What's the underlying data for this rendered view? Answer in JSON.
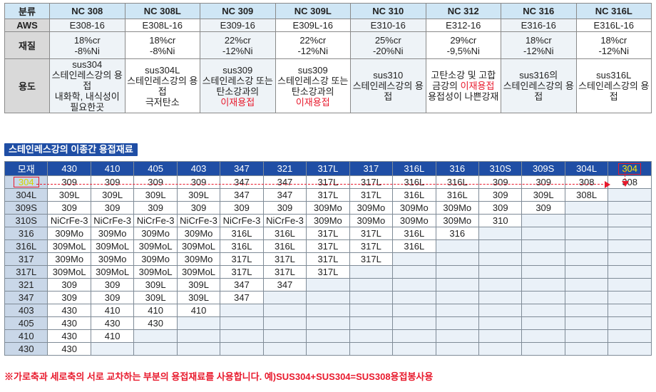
{
  "spec": {
    "row_labels": {
      "name": "분류",
      "aws": "AWS",
      "comp": "재질",
      "use": "용도"
    },
    "columns": [
      {
        "name": "NC 308",
        "aws": "E308-16",
        "comp1": "18%cr",
        "comp2": "-8%Ni",
        "use": [
          {
            "t": "sus304"
          },
          {
            "t": "스테인레스강의 용접"
          },
          {
            "t": "내화학, 내식성이"
          },
          {
            "t": "필요한곳"
          }
        ]
      },
      {
        "name": "NC 308L",
        "aws": "E308L-16",
        "comp1": "18%cr",
        "comp2": "-8%Ni",
        "use": [
          {
            "t": "sus304L"
          },
          {
            "t": "스테인레스강의 용접"
          },
          {
            "t": "극저탄소"
          }
        ]
      },
      {
        "name": "NC 309",
        "aws": "E309-16",
        "comp1": "22%cr",
        "comp2": "-12%Ni",
        "use": [
          {
            "t": "sus309"
          },
          {
            "t": "스테인레스강 또는"
          },
          {
            "t": "탄소강과의"
          },
          {
            "t": "이재용접",
            "red": true
          }
        ]
      },
      {
        "name": "NC 309L",
        "aws": "E309L-16",
        "comp1": "22%cr",
        "comp2": "-12%Ni",
        "use": [
          {
            "t": "sus309"
          },
          {
            "t": "스테인레스강 또는"
          },
          {
            "t": "탄소강과의"
          },
          {
            "t": "이재용접",
            "red": true
          }
        ]
      },
      {
        "name": "NC 310",
        "aws": "E310-16",
        "comp1": "25%cr",
        "comp2": "-20%Ni",
        "use": [
          {
            "t": "sus310"
          },
          {
            "t": "스테인레스강의 용접"
          }
        ]
      },
      {
        "name": "NC 312",
        "aws": "E312-16",
        "comp1": "29%cr",
        "comp2": "-9,5%Ni",
        "use": [
          {
            "t": "고탄소강 및 고합"
          },
          {
            "t": "금강의 ",
            "red_tail": "이재용접"
          },
          {
            "t": "용접성이 나쁜강재"
          }
        ]
      },
      {
        "name": "NC 316",
        "aws": "E316-16",
        "comp1": "18%cr",
        "comp2": "-12%Ni",
        "use": [
          {
            "t": "sus316의"
          },
          {
            "t": "스테인레스강의 용접"
          }
        ]
      },
      {
        "name": "NC 316L",
        "aws": "E316L-16",
        "comp1": "18%cr",
        "comp2": "-12%Ni",
        "use": [
          {
            "t": "sus316L"
          },
          {
            "t": "스테인레스강의 용접"
          }
        ]
      }
    ]
  },
  "section_title": "스테인레스강의 이종간 용접재료",
  "matrix": {
    "corner": "모재",
    "col_headers": [
      "430",
      "410",
      "405",
      "403",
      "347",
      "321",
      "317L",
      "317",
      "316L",
      "316",
      "310S",
      "309S",
      "304L",
      "304"
    ],
    "highlight_col": "304",
    "rows": [
      {
        "h": "304",
        "cells": [
          "309",
          "309",
          "309",
          "309",
          "347",
          "347",
          "317L",
          "317L",
          "316L",
          "316L",
          "309",
          "309",
          "308",
          "308"
        ]
      },
      {
        "h": "304L",
        "cells": [
          "309L",
          "309L",
          "309L",
          "309L",
          "347",
          "347",
          "317L",
          "317L",
          "316L",
          "316L",
          "309",
          "309L",
          "308L",
          ""
        ]
      },
      {
        "h": "309S",
        "cells": [
          "309",
          "309",
          "309",
          "309",
          "309",
          "309",
          "309Mo",
          "309Mo",
          "309Mo",
          "309Mo",
          "309",
          "309",
          "",
          ""
        ]
      },
      {
        "h": "310S",
        "cells": [
          "NiCrFe-3",
          "NiCrFe-3",
          "NiCrFe-3",
          "NiCrFe-3",
          "NiCrFe-3",
          "NiCrFe-3",
          "309Mo",
          "309Mo",
          "309Mo",
          "309Mo",
          "310",
          "",
          "",
          ""
        ]
      },
      {
        "h": "316",
        "cells": [
          "309Mo",
          "309Mo",
          "309Mo",
          "309Mo",
          "316L",
          "316L",
          "317L",
          "317L",
          "316L",
          "316",
          "",
          "",
          "",
          ""
        ]
      },
      {
        "h": "316L",
        "cells": [
          "309MoL",
          "309MoL",
          "309MoL",
          "309MoL",
          "316L",
          "316L",
          "317L",
          "317L",
          "316L",
          "",
          "",
          "",
          "",
          ""
        ]
      },
      {
        "h": "317",
        "cells": [
          "309Mo",
          "309Mo",
          "309Mo",
          "309Mo",
          "317L",
          "317L",
          "317L",
          "317L",
          "",
          "",
          "",
          "",
          "",
          ""
        ]
      },
      {
        "h": "317L",
        "cells": [
          "309MoL",
          "309MoL",
          "309MoL",
          "309MoL",
          "317L",
          "317L",
          "317L",
          "",
          "",
          "",
          "",
          "",
          "",
          ""
        ]
      },
      {
        "h": "321",
        "cells": [
          "309",
          "309",
          "309L",
          "309L",
          "347",
          "347",
          "",
          "",
          "",
          "",
          "",
          "",
          "",
          ""
        ]
      },
      {
        "h": "347",
        "cells": [
          "309",
          "309",
          "309L",
          "309L",
          "347",
          "",
          "",
          "",
          "",
          "",
          "",
          "",
          "",
          ""
        ]
      },
      {
        "h": "403",
        "cells": [
          "430",
          "410",
          "410",
          "410",
          "",
          "",
          "",
          "",
          "",
          "",
          "",
          "",
          "",
          ""
        ]
      },
      {
        "h": "405",
        "cells": [
          "430",
          "430",
          "430",
          "",
          "",
          "",
          "",
          "",
          "",
          "",
          "",
          "",
          "",
          ""
        ]
      },
      {
        "h": "410",
        "cells": [
          "430",
          "410",
          "",
          "",
          "",
          "",
          "",
          "",
          "",
          "",
          "",
          "",
          "",
          ""
        ]
      },
      {
        "h": "430",
        "cells": [
          "430",
          "",
          "",
          "",
          "",
          "",
          "",
          "",
          "",
          "",
          "",
          "",
          "",
          ""
        ]
      }
    ]
  },
  "footnote": "※가로축과 세로축의 서로 교차하는 부분의 용접재료를 사용합니다. 예)SUS304+SUS304=SUS308용접봉사용"
}
